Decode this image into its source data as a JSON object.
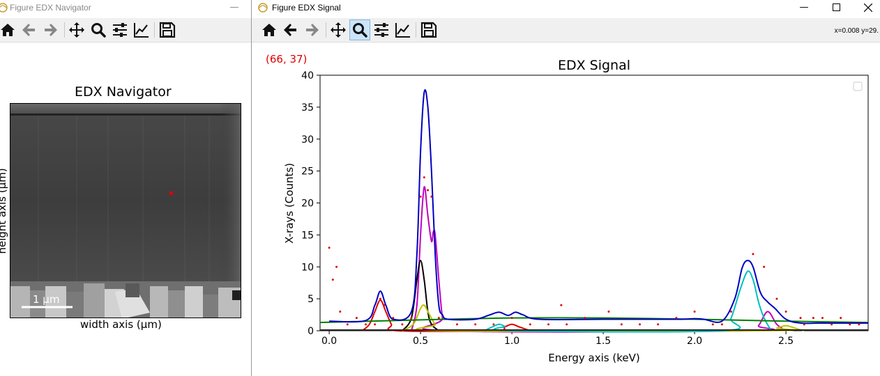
{
  "navigator": {
    "window_title": "Figure EDX Navigator",
    "plot_title": "EDX Navigator",
    "xlabel": "width axis (µm)",
    "ylabel": "height axis (µm)",
    "scalebar": "1 µm",
    "colormap": "gray",
    "marker_color": "#e00000",
    "toolbar": [
      "home-icon",
      "back-arrow-icon",
      "forward-arrow-icon",
      "pan-icon",
      "zoom-icon",
      "configure-icon",
      "edit-curves-icon",
      "save-icon"
    ]
  },
  "signal": {
    "window_title": "Figure EDX Signal",
    "plot_title": "EDX Signal",
    "position": "(66, 37)",
    "coords": "x=0.008 y=29.",
    "toolbar": [
      "home-icon",
      "back-arrow-icon",
      "forward-arrow-icon",
      "pan-icon",
      "zoom-icon",
      "configure-icon",
      "edit-curves-icon",
      "save-icon"
    ],
    "active_tool": "zoom-icon",
    "window_controls": [
      "minimize",
      "maximize",
      "close"
    ]
  },
  "chart_data": {
    "type": "line",
    "title": "EDX Signal",
    "xlabel": "Energy axis (keV)",
    "ylabel": "X-rays (Counts)",
    "xlim": [
      -0.05,
      2.95
    ],
    "ylim": [
      0,
      40
    ],
    "xticks": [
      0.0,
      0.5,
      1.0,
      1.5,
      2.0,
      2.5
    ],
    "xtick_labels": [
      "0.0",
      "0.5",
      "1.0",
      "1.5",
      "2.0",
      "2.5"
    ],
    "yticks": [
      0,
      5,
      10,
      15,
      20,
      25,
      30,
      35,
      40
    ],
    "ytick_labels": [
      "0",
      "5",
      "10",
      "15",
      "20",
      "25",
      "30",
      "35",
      "40"
    ],
    "grid": false,
    "legend": "top-right (empty)",
    "data_points": {
      "color": "#e00000",
      "x": [
        0.0,
        0.02,
        0.04,
        0.06,
        0.28,
        0.3,
        0.5,
        0.52,
        0.54,
        0.56,
        1.27,
        1.53,
        2.2,
        2.32,
        2.38,
        2.45,
        2.5,
        2.58,
        2.7,
        2.8
      ],
      "y": [
        13,
        8,
        10,
        3,
        5,
        4,
        21,
        24,
        22,
        21,
        4,
        3,
        3,
        12,
        10,
        5,
        3,
        2,
        2,
        2
      ],
      "low_x": [
        0.1,
        0.15,
        0.2,
        0.25,
        0.35,
        0.4,
        0.45,
        0.6,
        0.7,
        0.8,
        0.9,
        1.0,
        1.1,
        1.2,
        1.3,
        1.4,
        1.6,
        1.7,
        1.8,
        1.9,
        2.0,
        2.1,
        2.15,
        2.6,
        2.65,
        2.75,
        2.85,
        2.9
      ],
      "low_y": [
        1,
        2,
        1,
        1,
        2,
        1,
        2,
        2,
        1,
        1,
        1,
        2,
        1,
        1,
        1,
        2,
        1,
        1,
        1,
        2,
        3,
        1,
        1,
        1,
        2,
        1,
        1,
        1
      ]
    },
    "series": [
      {
        "color": "#0000c0",
        "x": [
          0.0,
          0.2,
          0.25,
          0.28,
          0.31,
          0.35,
          0.45,
          0.48,
          0.5,
          0.52,
          0.54,
          0.56,
          0.58,
          0.6,
          0.62,
          0.65,
          0.8,
          0.88,
          0.93,
          0.98,
          1.02,
          1.06,
          1.15,
          1.5,
          1.9,
          2.0,
          2.05,
          2.15,
          2.22,
          2.26,
          2.29,
          2.32,
          2.36,
          2.4,
          2.44,
          2.5,
          2.58,
          2.7,
          2.95
        ],
        "y": [
          1.5,
          1.6,
          4,
          6.2,
          4,
          1.8,
          3,
          12,
          28,
          37.3,
          35,
          25,
          12,
          4,
          2.5,
          1.8,
          1.8,
          2.5,
          2.9,
          2.4,
          2.9,
          2.5,
          1.8,
          1.8,
          1.8,
          1.9,
          1.8,
          1.5,
          5,
          9.8,
          11,
          10,
          6,
          4.5,
          3.5,
          1.8,
          1.2,
          1.2,
          1.2
        ]
      },
      {
        "color": "#c000c0",
        "x": [
          0.45,
          0.48,
          0.5,
          0.52,
          0.54,
          0.56,
          0.57,
          0.58,
          0.6,
          0.62,
          0.64,
          2.3,
          2.35,
          2.4,
          2.45,
          2.5
        ],
        "y": [
          0,
          4,
          15,
          22.5,
          18,
          14,
          15.5,
          15,
          8,
          2,
          0,
          0,
          0.8,
          3,
          1,
          0
        ],
        "xpeaks_note": ""
      },
      {
        "color": "#000000",
        "x": [
          0.4,
          0.45,
          0.48,
          0.5,
          0.52,
          0.54,
          0.56,
          0.6
        ],
        "y": [
          0,
          2,
          8,
          11,
          8,
          3,
          1,
          0
        ]
      },
      {
        "color": "#e00000",
        "x": [
          0.18,
          0.22,
          0.25,
          0.28,
          0.31,
          0.34,
          0.37,
          0.9,
          0.96,
          1.0,
          1.04,
          1.1
        ],
        "y": [
          0,
          1,
          3,
          4.8,
          3,
          1,
          0,
          0,
          0.6,
          1,
          0.6,
          0
        ]
      },
      {
        "color": "#c0c000",
        "x": [
          0.4,
          0.46,
          0.5,
          0.52,
          0.54,
          0.58,
          0.62,
          2.4,
          2.45,
          2.5,
          2.55,
          2.6
        ],
        "y": [
          0,
          1,
          3.5,
          4,
          3,
          1,
          0,
          0,
          0.4,
          0.8,
          0.4,
          0
        ]
      },
      {
        "color": "#00c0c0",
        "x": [
          0.85,
          0.9,
          0.93,
          0.96,
          1.0,
          2.15,
          2.2,
          2.25,
          2.29,
          2.32,
          2.35,
          2.38,
          2.42
        ],
        "y": [
          0,
          0.7,
          1,
          0.7,
          0,
          0,
          2,
          6.5,
          9.3,
          8,
          4.5,
          2,
          0
        ]
      },
      {
        "color": "#008000",
        "x": [
          -0.05,
          0.5,
          1.0,
          1.5,
          2.0,
          2.5,
          2.95
        ],
        "y": [
          1.3,
          1.7,
          2.0,
          2.0,
          1.8,
          1.5,
          1.3
        ]
      }
    ]
  }
}
